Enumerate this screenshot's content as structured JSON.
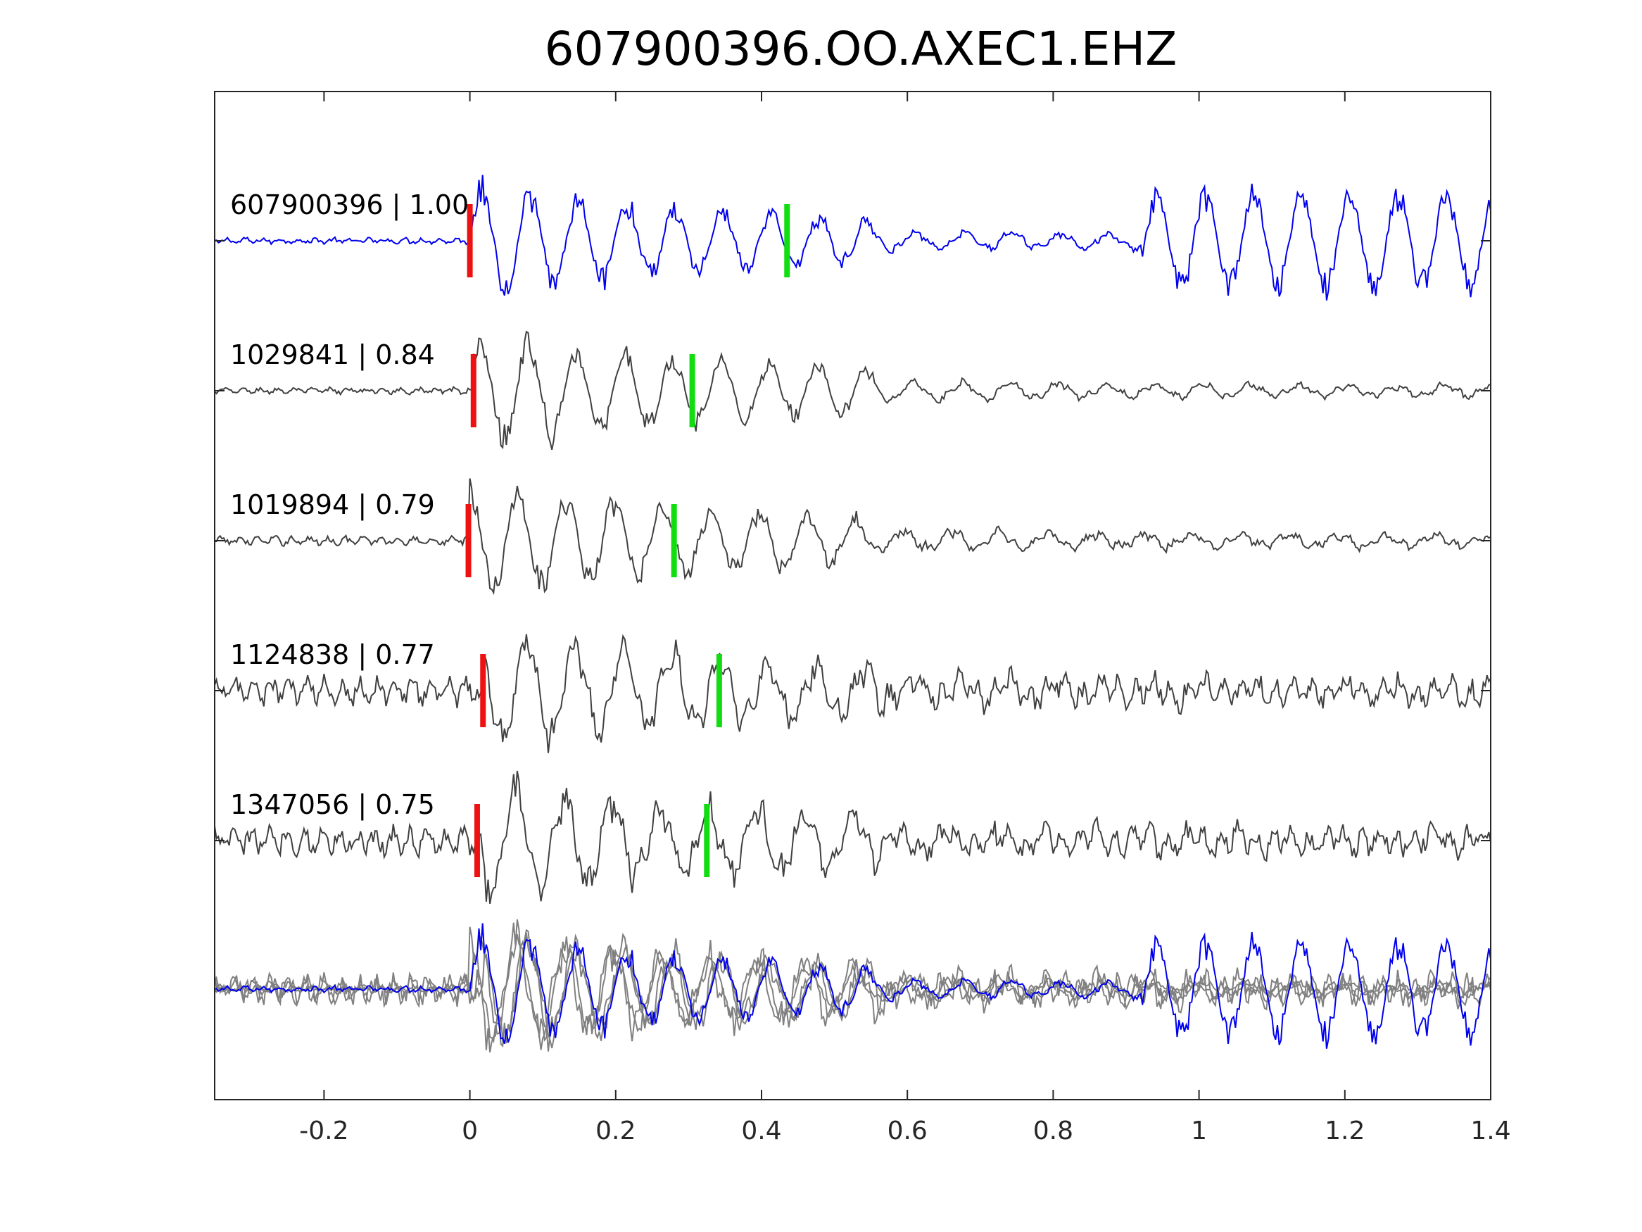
{
  "chart_data": {
    "type": "line",
    "title": "607900396.OO.AXEC1.EHZ",
    "xlabel": "",
    "ylabel": "",
    "xlim": [
      -0.35,
      1.4
    ],
    "xticks": [
      -0.2,
      0,
      0.2,
      0.4,
      0.6,
      0.8,
      1,
      1.2,
      1.4
    ],
    "xtick_labels": [
      "-0.2",
      "0",
      "0.2",
      "0.4",
      "0.6",
      "0.8",
      "1",
      "1.2",
      "1.4"
    ],
    "grid": false,
    "colors": {
      "master": "#0000ee",
      "neighbor": "#404040",
      "overlay": "#808080",
      "p_pick": "#ee1111",
      "s_pick": "#11dd11",
      "axes": "#262626"
    },
    "traces": [
      {
        "label": "607900396 | 1.00",
        "event_id": "607900396",
        "correlation": 1.0,
        "p_pick": 0.0,
        "s_pick": 0.435,
        "color_role": "master",
        "noise": 0.05,
        "tail": 0.9
      },
      {
        "label": "1029841 | 0.84",
        "event_id": "1029841",
        "correlation": 0.84,
        "p_pick": 0.005,
        "s_pick": 0.305,
        "color_role": "neighbor",
        "noise": 0.05,
        "tail": 0.25
      },
      {
        "label": "1019894 | 0.79",
        "event_id": "1019894",
        "correlation": 0.79,
        "p_pick": -0.002,
        "s_pick": 0.28,
        "color_role": "neighbor",
        "noise": 0.07,
        "tail": 0.2
      },
      {
        "label": "1124838 | 0.77",
        "event_id": "1124838",
        "correlation": 0.77,
        "p_pick": 0.018,
        "s_pick": 0.342,
        "color_role": "neighbor",
        "noise": 0.22,
        "tail": 0.4
      },
      {
        "label": "1347056 | 0.75",
        "event_id": "1347056",
        "correlation": 0.75,
        "p_pick": 0.01,
        "s_pick": 0.325,
        "color_role": "neighbor",
        "noise": 0.22,
        "tail": 0.35
      }
    ],
    "overlay": {
      "description_shown": false
    }
  }
}
